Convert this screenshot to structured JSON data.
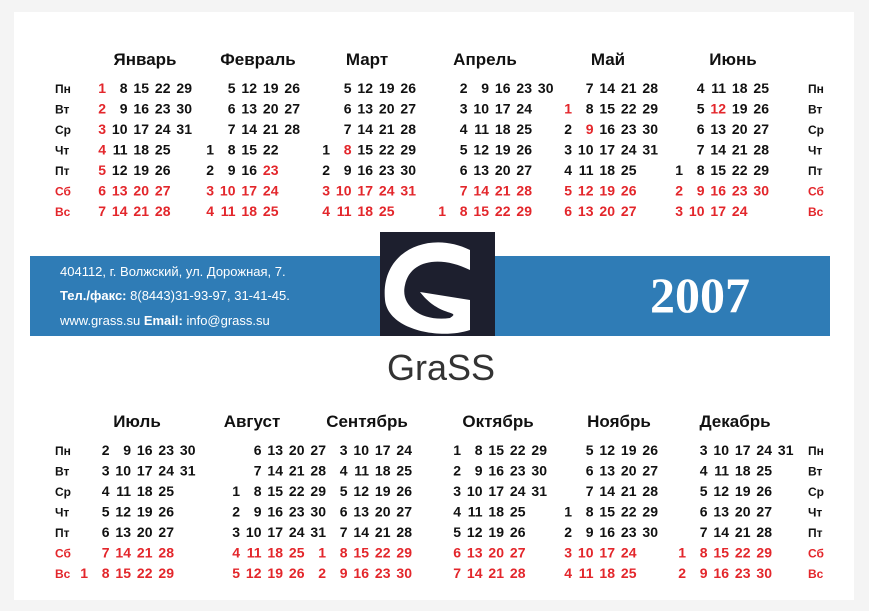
{
  "weekdays": [
    "Пн",
    "Вт",
    "Ср",
    "Чт",
    "Пт",
    "Сб",
    "Вс"
  ],
  "weekend_rows": [
    5,
    6
  ],
  "accent_color": "#e3262b",
  "band_color": "#2f7cb6",
  "months": [
    {
      "name": "Январь",
      "days": [
        [
          1,
          8,
          15,
          22,
          29
        ],
        [
          2,
          9,
          16,
          23,
          30
        ],
        [
          3,
          10,
          17,
          24,
          31
        ],
        [
          4,
          11,
          18,
          25
        ],
        [
          5,
          12,
          19,
          26
        ],
        [
          6,
          13,
          20,
          27
        ],
        [
          7,
          14,
          21,
          28
        ]
      ],
      "red_days": [
        1,
        2,
        3,
        4,
        5
      ]
    },
    {
      "name": "Февраль",
      "days": [
        [
          5,
          12,
          19,
          26
        ],
        [
          6,
          13,
          20,
          27
        ],
        [
          7,
          14,
          21,
          28
        ],
        [
          1,
          8,
          15,
          22
        ],
        [
          2,
          9,
          16,
          23
        ],
        [
          3,
          10,
          17,
          24
        ],
        [
          4,
          11,
          18,
          25
        ]
      ],
      "red_days": [
        23
      ]
    },
    {
      "name": "Март",
      "days": [
        [
          5,
          12,
          19,
          26
        ],
        [
          6,
          13,
          20,
          27
        ],
        [
          7,
          14,
          21,
          28
        ],
        [
          1,
          8,
          15,
          22,
          29
        ],
        [
          2,
          9,
          16,
          23,
          30
        ],
        [
          3,
          10,
          17,
          24,
          31
        ],
        [
          4,
          11,
          18,
          25
        ]
      ],
      "red_days": [
        8
      ]
    },
    {
      "name": "Апрель",
      "days": [
        [
          2,
          9,
          16,
          23,
          30
        ],
        [
          3,
          10,
          17,
          24
        ],
        [
          4,
          11,
          18,
          25
        ],
        [
          5,
          12,
          19,
          26
        ],
        [
          6,
          13,
          20,
          27
        ],
        [
          7,
          14,
          21,
          28
        ],
        [
          1,
          8,
          15,
          22,
          29
        ]
      ],
      "red_days": []
    },
    {
      "name": "Май",
      "days": [
        [
          7,
          14,
          21,
          28
        ],
        [
          1,
          8,
          15,
          22,
          29
        ],
        [
          2,
          9,
          16,
          23,
          30
        ],
        [
          3,
          10,
          17,
          24,
          31
        ],
        [
          4,
          11,
          18,
          25
        ],
        [
          5,
          12,
          19,
          26
        ],
        [
          6,
          13,
          20,
          27
        ]
      ],
      "red_days": [
        1,
        9
      ]
    },
    {
      "name": "Июнь",
      "days": [
        [
          4,
          11,
          18,
          25
        ],
        [
          5,
          12,
          19,
          26
        ],
        [
          6,
          13,
          20,
          27
        ],
        [
          7,
          14,
          21,
          28
        ],
        [
          1,
          8,
          15,
          22,
          29
        ],
        [
          2,
          9,
          16,
          23,
          30
        ],
        [
          3,
          10,
          17,
          24
        ]
      ],
      "red_days": [
        12
      ]
    },
    {
      "name": "Июль",
      "days": [
        [
          2,
          9,
          16,
          23,
          30
        ],
        [
          3,
          10,
          17,
          24,
          31
        ],
        [
          4,
          11,
          18,
          25
        ],
        [
          5,
          12,
          19,
          26
        ],
        [
          6,
          13,
          20,
          27
        ],
        [
          7,
          14,
          21,
          28
        ],
        [
          1,
          8,
          15,
          22,
          29
        ]
      ],
      "red_days": []
    },
    {
      "name": "Август",
      "days": [
        [
          6,
          13,
          20,
          27
        ],
        [
          7,
          14,
          21,
          28
        ],
        [
          1,
          8,
          15,
          22,
          29
        ],
        [
          2,
          9,
          16,
          23,
          30
        ],
        [
          3,
          10,
          17,
          24,
          31
        ],
        [
          4,
          11,
          18,
          25
        ],
        [
          5,
          12,
          19,
          26
        ]
      ],
      "red_days": []
    },
    {
      "name": "Сентябрь",
      "days": [
        [
          3,
          10,
          17,
          24
        ],
        [
          4,
          11,
          18,
          25
        ],
        [
          5,
          12,
          19,
          26
        ],
        [
          6,
          13,
          20,
          27
        ],
        [
          7,
          14,
          21,
          28
        ],
        [
          1,
          8,
          15,
          22,
          29
        ],
        [
          2,
          9,
          16,
          23,
          30
        ]
      ],
      "red_days": []
    },
    {
      "name": "Октябрь",
      "days": [
        [
          1,
          8,
          15,
          22,
          29
        ],
        [
          2,
          9,
          16,
          23,
          30
        ],
        [
          3,
          10,
          17,
          24,
          31
        ],
        [
          4,
          11,
          18,
          25
        ],
        [
          5,
          12,
          19,
          26
        ],
        [
          6,
          13,
          20,
          27
        ],
        [
          7,
          14,
          21,
          28
        ]
      ],
      "red_days": []
    },
    {
      "name": "Ноябрь",
      "days": [
        [
          5,
          12,
          19,
          26
        ],
        [
          6,
          13,
          20,
          27
        ],
        [
          7,
          14,
          21,
          28
        ],
        [
          1,
          8,
          15,
          22,
          29
        ],
        [
          2,
          9,
          16,
          23,
          30
        ],
        [
          3,
          10,
          17,
          24
        ],
        [
          4,
          11,
          18,
          25
        ]
      ],
      "red_days": []
    },
    {
      "name": "Декабрь",
      "days": [
        [
          3,
          10,
          17,
          24,
          31
        ],
        [
          4,
          11,
          18,
          25
        ],
        [
          5,
          12,
          19,
          26
        ],
        [
          6,
          13,
          20,
          27
        ],
        [
          7,
          14,
          21,
          28
        ],
        [
          1,
          8,
          15,
          22,
          29
        ],
        [
          2,
          9,
          16,
          23,
          30
        ]
      ],
      "red_days": []
    }
  ],
  "contact": {
    "address": "404112, г. Волжский,  ул. Дорожная, 7.",
    "phone_label": "Тел./факс:",
    "phone": "8(8443)31-93-97, 31-41-45.",
    "site": "www.grass.su",
    "email_label": "Email:",
    "email": "info@grass.su"
  },
  "year": "2007",
  "logo": "GraSS"
}
